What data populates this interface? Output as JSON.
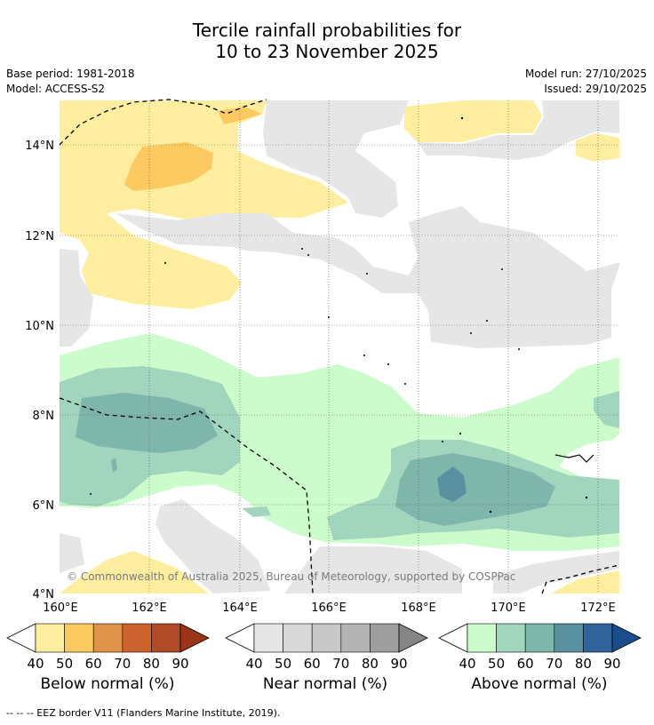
{
  "title_line1": "Tercile rainfall probabilities for",
  "title_line2": "10 to 23 November 2025",
  "base_period": "Base period: 1981-2018",
  "model": "Model: ACCESS-S2",
  "model_run": "Model run: 27/10/2025",
  "issued": "Issued: 29/10/2025",
  "copyright": "© Commonwealth of Australia 2025, Bureau of Meteorology, supported by COSPPac",
  "footnote": "-- -- -- EEZ border V11 (Flanders Marine Institute, 2019).",
  "map": {
    "lat_labels": [
      "14°N",
      "12°N",
      "10°N",
      "8°N",
      "6°N",
      "4°N"
    ],
    "lon_labels": [
      "160°E",
      "162°E",
      "164°E",
      "166°E",
      "168°E",
      "170°E",
      "172°E"
    ],
    "lat_values": [
      14,
      12,
      10,
      8,
      6,
      4
    ],
    "lon_values": [
      160,
      162,
      164,
      166,
      168,
      170,
      172
    ],
    "extent": {
      "lon_min": 160,
      "lon_max": 172.5,
      "lat_min": 4,
      "lat_max": 15
    }
  },
  "legends": [
    {
      "label": "Below normal (%)",
      "ticks": [
        "40",
        "50",
        "60",
        "70",
        "80",
        "90"
      ],
      "colors": [
        "#ffee9f",
        "#fdca62",
        "#e0944b",
        "#cd6231",
        "#b04b28",
        "#9b3518"
      ]
    },
    {
      "label": "Near normal (%)",
      "ticks": [
        "40",
        "50",
        "60",
        "70",
        "80",
        "90"
      ],
      "colors": [
        "#e6e6e6",
        "#d8d8d8",
        "#c8c8c8",
        "#b3b3b3",
        "#9e9e9e",
        "#858585"
      ]
    },
    {
      "label": "Above normal (%)",
      "ticks": [
        "40",
        "50",
        "60",
        "70",
        "80",
        "90"
      ],
      "colors": [
        "#ccfccc",
        "#a1d5bd",
        "#7fb6ab",
        "#5a91a0",
        "#31649a",
        "#1a4d8c"
      ]
    }
  ]
}
